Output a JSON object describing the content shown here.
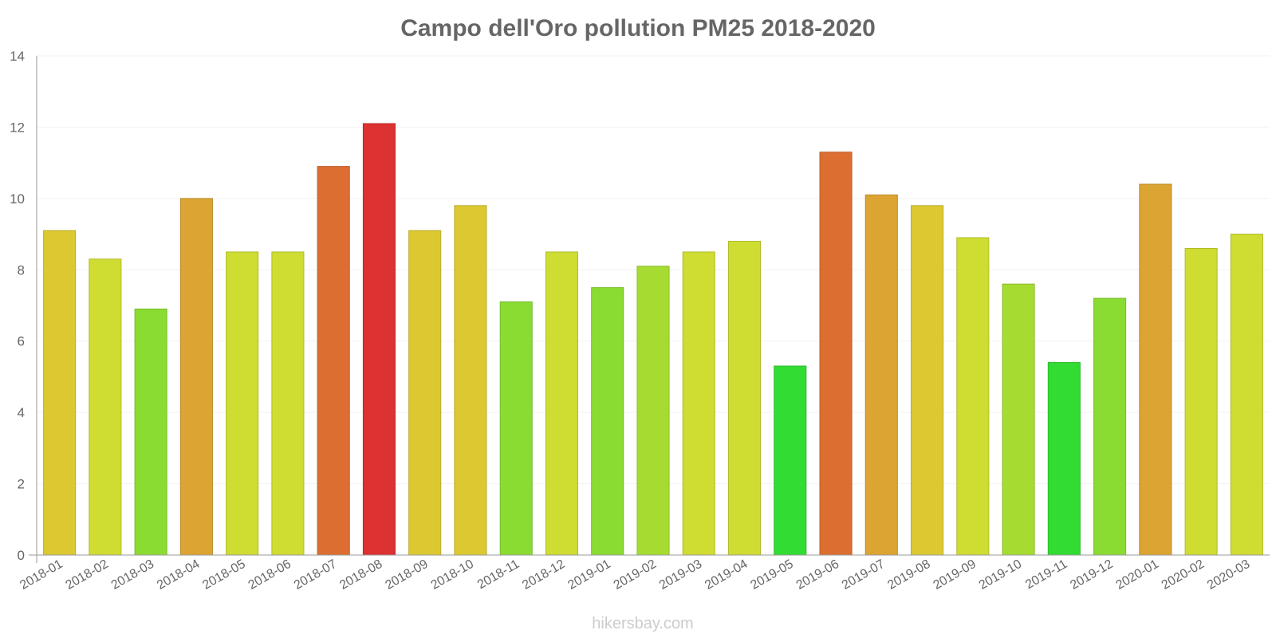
{
  "chart_data": {
    "type": "bar",
    "title": "Campo dell'Oro pollution PM25 2018-2020",
    "xlabel": "",
    "ylabel": "",
    "ylim": [
      0,
      14
    ],
    "yticks": [
      0,
      2,
      4,
      6,
      8,
      10,
      12,
      14
    ],
    "grid": true,
    "legend": "none",
    "categories": [
      "2018-01",
      "2018-02",
      "2018-03",
      "2018-04",
      "2018-05",
      "2018-06",
      "2018-07",
      "2018-08",
      "2018-09",
      "2018-10",
      "2018-11",
      "2018-12",
      "2019-01",
      "2019-02",
      "2019-03",
      "2019-04",
      "2019-05",
      "2019-06",
      "2019-07",
      "2019-08",
      "2019-09",
      "2019-10",
      "2019-11",
      "2019-12",
      "2020-01",
      "2020-02",
      "2020-03"
    ],
    "values": [
      9.1,
      8.3,
      6.9,
      10.0,
      8.5,
      8.5,
      10.9,
      12.1,
      9.1,
      9.8,
      7.1,
      8.5,
      7.5,
      8.1,
      8.5,
      8.8,
      5.3,
      11.3,
      10.1,
      9.8,
      8.9,
      7.6,
      5.4,
      7.2,
      10.4,
      8.6,
      9.0
    ],
    "colors": [
      "#dcc932",
      "#cfdc32",
      "#8adc32",
      "#dca432",
      "#cfdc32",
      "#cfdc32",
      "#dc6e32",
      "#dc3232",
      "#dcc932",
      "#dcc932",
      "#8adc32",
      "#cfdc32",
      "#8adc32",
      "#a6dc32",
      "#cfdc32",
      "#cfdc32",
      "#32dc32",
      "#dc6e32",
      "#dca432",
      "#dcc932",
      "#cfdc32",
      "#a6dc32",
      "#32dc32",
      "#8adc32",
      "#dca432",
      "#cfdc32",
      "#cfdc32"
    ]
  },
  "credit": "hikersbay.com"
}
